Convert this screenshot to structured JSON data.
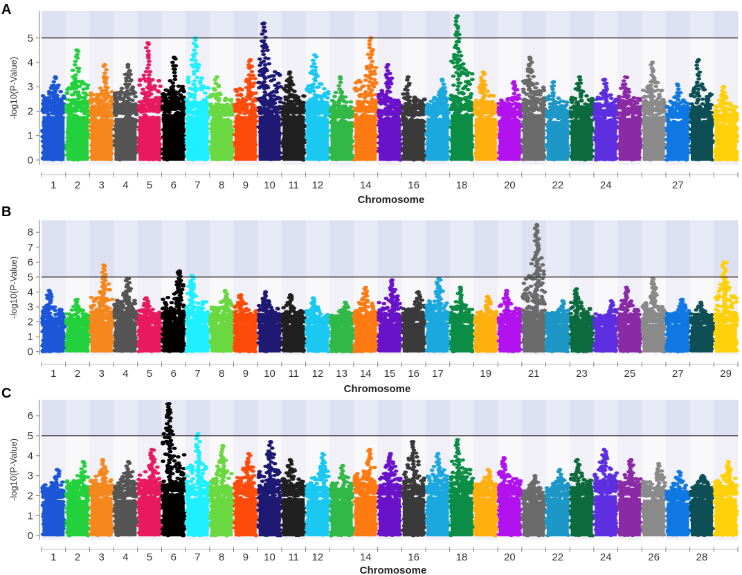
{
  "threshold": 5,
  "palette": [
    "#1b57d6",
    "#22d13c",
    "#f5871c",
    "#555555",
    "#e8195f",
    "#000000",
    "#1ff0ff",
    "#6ad841",
    "#ff4b0a",
    "#1e1a73",
    "#202020",
    "#1bc8f2",
    "#32b847",
    "#ff7a12",
    "#6a12c9",
    "#3a3a3a",
    "#1aa8df",
    "#0c8d46",
    "#ffaf0e",
    "#b112ee",
    "#6b6b6b",
    "#1c97c7",
    "#0c6a3c",
    "#5d2fe0",
    "#8a2aa5",
    "#8a8a8a",
    "#0f78e2",
    "#0d4f55",
    "#ffd10a"
  ],
  "chart_data": [
    {
      "id": "A",
      "panel_label": "A",
      "type": "scatter",
      "subtype": "manhattan",
      "ylabel": "-log10(P-Value)",
      "xlabel": "Chromosome",
      "ylim": [
        -0.2,
        6.1
      ],
      "yticks": [
        0,
        1,
        2,
        3,
        4,
        5
      ],
      "chromosome_count": 29,
      "tick_labels": [
        {
          "chr": 1,
          "label": "1"
        },
        {
          "chr": 2,
          "label": "2"
        },
        {
          "chr": 3,
          "label": "3"
        },
        {
          "chr": 4,
          "label": "4"
        },
        {
          "chr": 5,
          "label": "5"
        },
        {
          "chr": 6,
          "label": "6"
        },
        {
          "chr": 7,
          "label": "7"
        },
        {
          "chr": 8,
          "label": "8"
        },
        {
          "chr": 9,
          "label": "9"
        },
        {
          "chr": 10,
          "label": "10"
        },
        {
          "chr": 11,
          "label": "11"
        },
        {
          "chr": 12,
          "label": "12"
        },
        {
          "chr": 14,
          "label": "14"
        },
        {
          "chr": 16,
          "label": "16"
        },
        {
          "chr": 18,
          "label": "18"
        },
        {
          "chr": 20,
          "label": "20"
        },
        {
          "chr": 22,
          "label": "22"
        },
        {
          "chr": 24,
          "label": "24"
        },
        {
          "chr": 27,
          "label": "27"
        }
      ],
      "series": [
        {
          "chr": 1,
          "base": 2.5,
          "max": 3.4
        },
        {
          "chr": 2,
          "base": 2.5,
          "max": 4.5
        },
        {
          "chr": 3,
          "base": 2.3,
          "max": 3.9
        },
        {
          "chr": 4,
          "base": 2.4,
          "max": 3.9
        },
        {
          "chr": 5,
          "base": 2.5,
          "max": 4.8
        },
        {
          "chr": 6,
          "base": 2.6,
          "max": 4.2
        },
        {
          "chr": 7,
          "base": 2.4,
          "max": 5.0
        },
        {
          "chr": 8,
          "base": 2.3,
          "max": 3.4
        },
        {
          "chr": 9,
          "base": 2.5,
          "max": 4.1
        },
        {
          "chr": 10,
          "base": 2.5,
          "max": 5.6
        },
        {
          "chr": 11,
          "base": 2.4,
          "max": 3.6
        },
        {
          "chr": 12,
          "base": 2.4,
          "max": 4.3
        },
        {
          "chr": 13,
          "base": 2.2,
          "max": 3.4
        },
        {
          "chr": 14,
          "base": 2.5,
          "max": 5.0
        },
        {
          "chr": 15,
          "base": 2.4,
          "max": 3.9
        },
        {
          "chr": 16,
          "base": 2.3,
          "max": 3.4
        },
        {
          "chr": 17,
          "base": 2.4,
          "max": 3.3
        },
        {
          "chr": 18,
          "base": 2.6,
          "max": 5.9
        },
        {
          "chr": 19,
          "base": 2.4,
          "max": 3.6
        },
        {
          "chr": 20,
          "base": 2.3,
          "max": 3.2
        },
        {
          "chr": 21,
          "base": 2.6,
          "max": 4.2
        },
        {
          "chr": 22,
          "base": 2.2,
          "max": 3.2
        },
        {
          "chr": 23,
          "base": 2.3,
          "max": 3.4
        },
        {
          "chr": 24,
          "base": 2.3,
          "max": 3.3
        },
        {
          "chr": 25,
          "base": 2.4,
          "max": 3.4
        },
        {
          "chr": 26,
          "base": 2.5,
          "max": 4.0
        },
        {
          "chr": 27,
          "base": 2.2,
          "max": 3.1
        },
        {
          "chr": 28,
          "base": 2.2,
          "max": 4.1
        },
        {
          "chr": 29,
          "base": 2.0,
          "max": 3.0
        }
      ]
    },
    {
      "id": "B",
      "panel_label": "B",
      "type": "scatter",
      "subtype": "manhattan",
      "ylabel": "-log10(P-Value)",
      "xlabel": "Chromosome",
      "ylim": [
        -0.2,
        8.8
      ],
      "yticks": [
        0,
        1,
        2,
        3,
        4,
        5,
        6,
        7,
        8
      ],
      "chromosome_count": 29,
      "tick_labels": [
        {
          "chr": 1,
          "label": "1"
        },
        {
          "chr": 2,
          "label": "2"
        },
        {
          "chr": 3,
          "label": "3"
        },
        {
          "chr": 4,
          "label": "4"
        },
        {
          "chr": 5,
          "label": "5"
        },
        {
          "chr": 6,
          "label": "6"
        },
        {
          "chr": 7,
          "label": "7"
        },
        {
          "chr": 8,
          "label": "8"
        },
        {
          "chr": 9,
          "label": "9"
        },
        {
          "chr": 10,
          "label": "10"
        },
        {
          "chr": 11,
          "label": "11"
        },
        {
          "chr": 12,
          "label": "12"
        },
        {
          "chr": 13,
          "label": "13"
        },
        {
          "chr": 14,
          "label": "14"
        },
        {
          "chr": 15,
          "label": "15"
        },
        {
          "chr": 16,
          "label": "16"
        },
        {
          "chr": 17,
          "label": "17"
        },
        {
          "chr": 19,
          "label": "19"
        },
        {
          "chr": 21,
          "label": "21"
        },
        {
          "chr": 23,
          "label": "23"
        },
        {
          "chr": 25,
          "label": "25"
        },
        {
          "chr": 27,
          "label": "27"
        },
        {
          "chr": 29,
          "label": "29"
        }
      ],
      "series": [
        {
          "chr": 1,
          "base": 2.3,
          "max": 4.1
        },
        {
          "chr": 2,
          "base": 2.2,
          "max": 3.5
        },
        {
          "chr": 3,
          "base": 2.8,
          "max": 5.8
        },
        {
          "chr": 4,
          "base": 2.8,
          "max": 4.9
        },
        {
          "chr": 5,
          "base": 2.4,
          "max": 3.6
        },
        {
          "chr": 6,
          "base": 2.8,
          "max": 5.4
        },
        {
          "chr": 7,
          "base": 2.5,
          "max": 5.1
        },
        {
          "chr": 8,
          "base": 2.6,
          "max": 4.1
        },
        {
          "chr": 9,
          "base": 2.5,
          "max": 3.8
        },
        {
          "chr": 10,
          "base": 2.6,
          "max": 4.0
        },
        {
          "chr": 11,
          "base": 2.5,
          "max": 3.8
        },
        {
          "chr": 12,
          "base": 2.4,
          "max": 3.6
        },
        {
          "chr": 13,
          "base": 2.3,
          "max": 3.3
        },
        {
          "chr": 14,
          "base": 2.5,
          "max": 4.3
        },
        {
          "chr": 15,
          "base": 2.6,
          "max": 4.8
        },
        {
          "chr": 16,
          "base": 2.7,
          "max": 4.0
        },
        {
          "chr": 17,
          "base": 2.7,
          "max": 4.9
        },
        {
          "chr": 18,
          "base": 2.5,
          "max": 4.3
        },
        {
          "chr": 19,
          "base": 2.4,
          "max": 3.7
        },
        {
          "chr": 20,
          "base": 2.5,
          "max": 4.1
        },
        {
          "chr": 21,
          "base": 2.8,
          "max": 8.5
        },
        {
          "chr": 22,
          "base": 2.5,
          "max": 3.4
        },
        {
          "chr": 23,
          "base": 2.4,
          "max": 4.2
        },
        {
          "chr": 24,
          "base": 2.3,
          "max": 3.4
        },
        {
          "chr": 25,
          "base": 2.5,
          "max": 4.3
        },
        {
          "chr": 26,
          "base": 2.6,
          "max": 4.9
        },
        {
          "chr": 27,
          "base": 2.5,
          "max": 3.5
        },
        {
          "chr": 28,
          "base": 2.4,
          "max": 3.3
        },
        {
          "chr": 29,
          "base": 2.6,
          "max": 6.0
        }
      ]
    },
    {
      "id": "C",
      "panel_label": "C",
      "type": "scatter",
      "subtype": "manhattan",
      "ylabel": "-log10(P-Value)",
      "xlabel": "Chromosome",
      "ylim": [
        -0.2,
        6.8
      ],
      "yticks": [
        0,
        1,
        2,
        3,
        4,
        5,
        6
      ],
      "chromosome_count": 29,
      "tick_labels": [
        {
          "chr": 1,
          "label": "1"
        },
        {
          "chr": 2,
          "label": "2"
        },
        {
          "chr": 3,
          "label": "3"
        },
        {
          "chr": 4,
          "label": "4"
        },
        {
          "chr": 5,
          "label": "5"
        },
        {
          "chr": 6,
          "label": "6"
        },
        {
          "chr": 7,
          "label": "7"
        },
        {
          "chr": 8,
          "label": "8"
        },
        {
          "chr": 9,
          "label": "9"
        },
        {
          "chr": 10,
          "label": "10"
        },
        {
          "chr": 11,
          "label": "11"
        },
        {
          "chr": 12,
          "label": "12"
        },
        {
          "chr": 14,
          "label": "14"
        },
        {
          "chr": 16,
          "label": "16"
        },
        {
          "chr": 18,
          "label": "18"
        },
        {
          "chr": 20,
          "label": "20"
        },
        {
          "chr": 22,
          "label": "22"
        },
        {
          "chr": 24,
          "label": "24"
        },
        {
          "chr": 26,
          "label": "26"
        },
        {
          "chr": 28,
          "label": "28"
        }
      ],
      "series": [
        {
          "chr": 1,
          "base": 2.4,
          "max": 3.3
        },
        {
          "chr": 2,
          "base": 2.5,
          "max": 3.7
        },
        {
          "chr": 3,
          "base": 2.6,
          "max": 3.8
        },
        {
          "chr": 4,
          "base": 2.5,
          "max": 3.7
        },
        {
          "chr": 5,
          "base": 2.6,
          "max": 4.3
        },
        {
          "chr": 6,
          "base": 2.8,
          "max": 6.6
        },
        {
          "chr": 7,
          "base": 2.6,
          "max": 5.1
        },
        {
          "chr": 8,
          "base": 2.5,
          "max": 4.5
        },
        {
          "chr": 9,
          "base": 2.6,
          "max": 4.1
        },
        {
          "chr": 10,
          "base": 2.7,
          "max": 4.7
        },
        {
          "chr": 11,
          "base": 2.6,
          "max": 3.8
        },
        {
          "chr": 12,
          "base": 2.5,
          "max": 4.1
        },
        {
          "chr": 13,
          "base": 2.4,
          "max": 3.5
        },
        {
          "chr": 14,
          "base": 2.7,
          "max": 4.3
        },
        {
          "chr": 15,
          "base": 2.6,
          "max": 4.1
        },
        {
          "chr": 16,
          "base": 2.6,
          "max": 4.7
        },
        {
          "chr": 17,
          "base": 2.7,
          "max": 4.1
        },
        {
          "chr": 18,
          "base": 2.7,
          "max": 4.8
        },
        {
          "chr": 19,
          "base": 2.5,
          "max": 3.3
        },
        {
          "chr": 20,
          "base": 2.6,
          "max": 3.9
        },
        {
          "chr": 21,
          "base": 2.3,
          "max": 3.0
        },
        {
          "chr": 22,
          "base": 2.5,
          "max": 3.3
        },
        {
          "chr": 23,
          "base": 2.6,
          "max": 3.8
        },
        {
          "chr": 24,
          "base": 2.8,
          "max": 4.3
        },
        {
          "chr": 25,
          "base": 2.6,
          "max": 3.8
        },
        {
          "chr": 26,
          "base": 2.5,
          "max": 3.6
        },
        {
          "chr": 27,
          "base": 2.3,
          "max": 3.2
        },
        {
          "chr": 28,
          "base": 2.5,
          "max": 3.0
        },
        {
          "chr": 29,
          "base": 2.6,
          "max": 3.7
        }
      ]
    }
  ]
}
